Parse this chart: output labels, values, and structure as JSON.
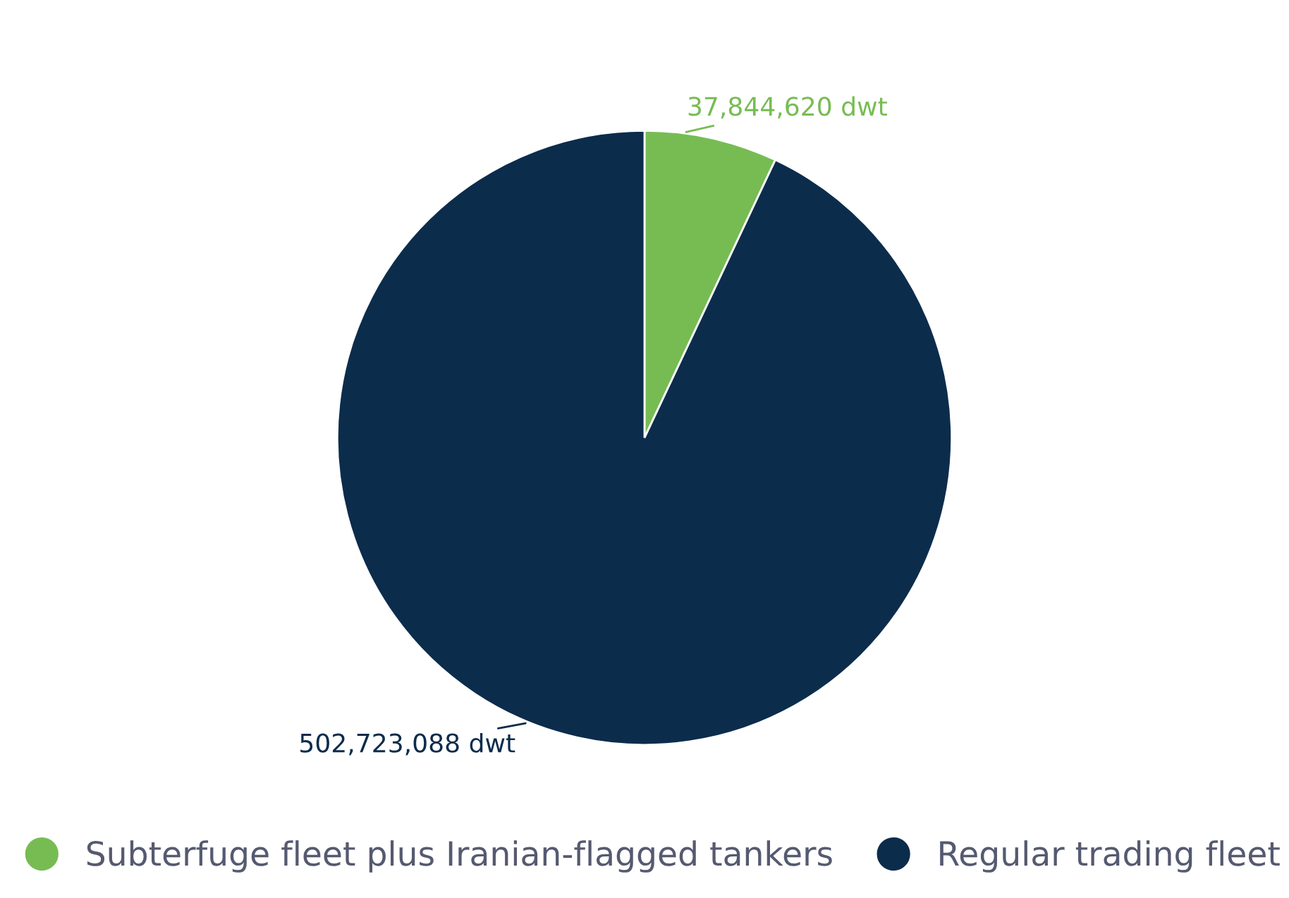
{
  "chart_data": {
    "type": "pie",
    "categories": [
      "Subterfuge fleet plus Iranian-flagged tankers",
      "Regular trading fleet"
    ],
    "values": [
      37844620,
      502723088
    ],
    "colors": [
      "#77bc53",
      "#0c2c4c"
    ],
    "value_labels": [
      "37,844,620 dwt",
      "502,723,088 dwt"
    ],
    "legend": "bottom"
  }
}
